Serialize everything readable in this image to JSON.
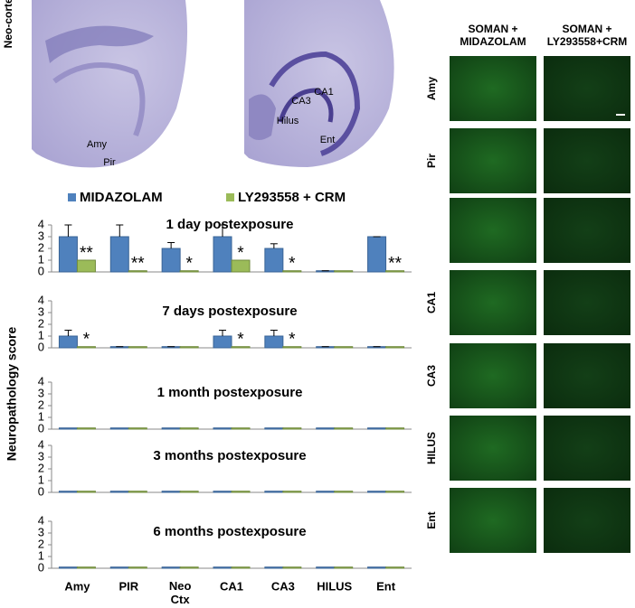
{
  "chart_data": {
    "type": "bar",
    "ylabel": "Neuropathology score",
    "categories": [
      "Amy",
      "PIR",
      "Neo\nCtx",
      "CA1",
      "CA3",
      "HILUS",
      "Ent"
    ],
    "series": [
      {
        "name": "MIDAZOLAM",
        "color": "#4f81bd"
      },
      {
        "name": "LY293558 + CRM",
        "color": "#9bbb59"
      }
    ],
    "ylim": [
      0,
      4
    ],
    "yticks": [
      0,
      1,
      2,
      3,
      4
    ],
    "panels": [
      {
        "title": "1 day postexposure",
        "values": [
          [
            3,
            3,
            2,
            3,
            2,
            0.1,
            3
          ],
          [
            1,
            0.1,
            0.1,
            1,
            0.1,
            0.1,
            0.1
          ]
        ],
        "errors": [
          [
            1,
            1,
            0.5,
            1,
            0.4,
            0,
            0
          ]
        ],
        "significance": [
          "**",
          "**",
          "*",
          "*",
          "*",
          null,
          "**"
        ]
      },
      {
        "title": "7 days postexposure",
        "values": [
          [
            1,
            0.1,
            0.1,
            1,
            1,
            0.1,
            0.1
          ],
          [
            0.1,
            0.1,
            0.1,
            0.1,
            0.1,
            0.1,
            0.1
          ]
        ],
        "errors": [
          [
            0.5,
            0,
            0,
            0.5,
            0.5,
            0,
            0
          ]
        ],
        "significance": [
          "*",
          null,
          null,
          "*",
          "*",
          null,
          null
        ]
      },
      {
        "title": "1 month postexposure",
        "values": [
          [
            0.1,
            0.1,
            0.1,
            0.1,
            0.1,
            0.1,
            0.1
          ],
          [
            0.1,
            0.1,
            0.1,
            0.1,
            0.1,
            0.1,
            0.1
          ]
        ]
      },
      {
        "title": "3 months postexposure",
        "values": [
          [
            0.1,
            0.1,
            0.1,
            0.1,
            0.1,
            0.1,
            0.1
          ],
          [
            0.1,
            0.1,
            0.1,
            0.1,
            0.1,
            0.1,
            0.1
          ]
        ]
      },
      {
        "title": "6 months postexposure",
        "values": [
          [
            0.1,
            0.1,
            0.1,
            0.1,
            0.1,
            0.1,
            0.1
          ],
          [
            0.1,
            0.1,
            0.1,
            0.1,
            0.1,
            0.1,
            0.1
          ]
        ]
      }
    ]
  },
  "brain_sections": {
    "side_label": "Neo-cortex",
    "left_labels": [
      "Amy",
      "Pir"
    ],
    "right_labels": [
      "CA1",
      "CA3",
      "Hilus",
      "Ent"
    ]
  },
  "micrographs": {
    "columns": [
      "SOMAN +\nMIDAZOLAM",
      "SOMAN +\nLY293558+CRM"
    ],
    "rows": [
      "Amy",
      "Pir",
      null,
      "CA1",
      "CA3",
      "HILUS",
      "Ent"
    ]
  }
}
